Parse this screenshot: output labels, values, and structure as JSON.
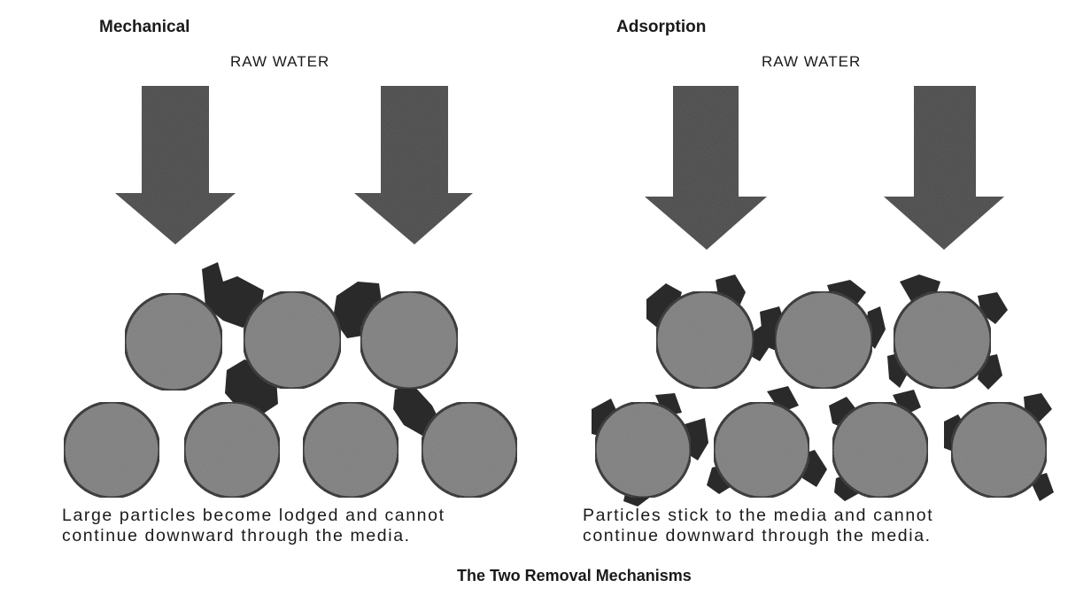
{
  "panels": [
    {
      "heading": "Mechanical",
      "raw_label": "RAW WATER",
      "caption_line1": "Large particles become lodged and cannot",
      "caption_line2": "continue downward through the media."
    },
    {
      "heading": "Adsorption",
      "raw_label": "RAW WATER",
      "caption_line1": "Particles stick to the media and cannot",
      "caption_line2": "continue downward through the media."
    }
  ],
  "footer": "The Two Removal Mechanisms",
  "colors": {
    "arrow": "#4a4a4a",
    "media_fill": "#8c8c8c",
    "media_stroke": "#1e1e1e",
    "particle": "#2a2a2a"
  }
}
